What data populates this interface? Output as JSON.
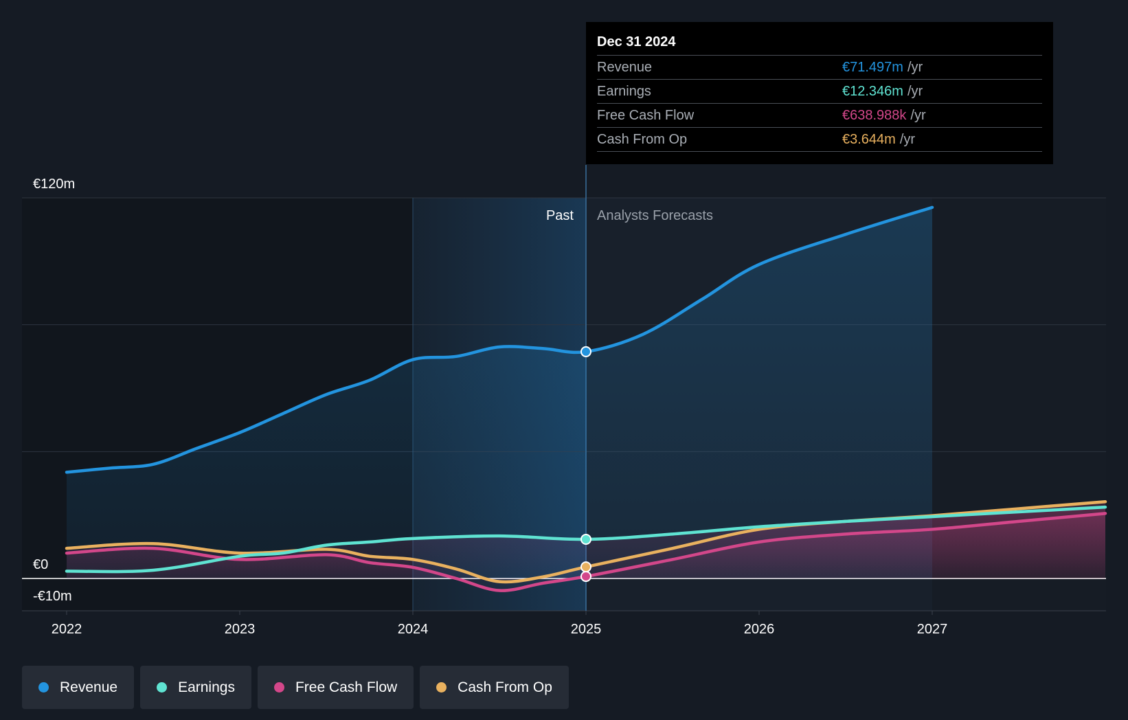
{
  "chart_data": {
    "type": "line",
    "title": "",
    "currency": "€",
    "ylim": [
      -10,
      120
    ],
    "y_ticks": [
      {
        "value": 120,
        "label": "€120m"
      },
      {
        "value": 0,
        "label": "€0"
      },
      {
        "value": -10,
        "label": "-€10m"
      }
    ],
    "x_ticks": [
      {
        "value": 2022,
        "label": "2022"
      },
      {
        "value": 2023,
        "label": "2023"
      },
      {
        "value": 2024,
        "label": "2024"
      },
      {
        "value": 2025,
        "label": "2025"
      },
      {
        "value": 2026,
        "label": "2026"
      },
      {
        "value": 2027,
        "label": "2027"
      }
    ],
    "xlim": [
      2021.75,
      2028.0
    ],
    "past_label": "Past",
    "forecast_label": "Analysts Forecasts",
    "past_end": 2025.0,
    "highlight_start": 2024.0,
    "forecast_end": 2027.0,
    "series": [
      {
        "name": "Revenue",
        "color": "#2394df",
        "points": [
          [
            2022.0,
            33.5
          ],
          [
            2022.25,
            34.8
          ],
          [
            2022.5,
            36.0
          ],
          [
            2022.75,
            41.0
          ],
          [
            2023.0,
            46.0
          ],
          [
            2023.25,
            52.0
          ],
          [
            2023.5,
            58.0
          ],
          [
            2023.75,
            62.5
          ],
          [
            2024.0,
            69.0
          ],
          [
            2024.25,
            70.0
          ],
          [
            2024.5,
            73.0
          ],
          [
            2024.75,
            72.5
          ],
          [
            2025.0,
            71.497
          ],
          [
            2025.33,
            77.0
          ],
          [
            2025.67,
            88.0
          ],
          [
            2026.0,
            99.0
          ],
          [
            2026.5,
            108.5
          ],
          [
            2027.0,
            117.0
          ]
        ]
      },
      {
        "name": "Earnings",
        "color": "#5fe3d2",
        "points": [
          [
            2022.0,
            2.3
          ],
          [
            2022.5,
            2.6
          ],
          [
            2023.0,
            7.0
          ],
          [
            2023.25,
            8.0
          ],
          [
            2023.5,
            10.5
          ],
          [
            2023.75,
            11.5
          ],
          [
            2024.0,
            12.6
          ],
          [
            2024.5,
            13.4
          ],
          [
            2025.0,
            12.346
          ],
          [
            2025.5,
            14.0
          ],
          [
            2026.0,
            16.3
          ],
          [
            2026.5,
            18.0
          ],
          [
            2027.0,
            19.5
          ],
          [
            2027.5,
            21.0
          ],
          [
            2028.0,
            22.5
          ]
        ]
      },
      {
        "name": "Free Cash Flow",
        "color": "#d3478a",
        "points": [
          [
            2022.0,
            8.0
          ],
          [
            2022.5,
            9.5
          ],
          [
            2023.0,
            6.0
          ],
          [
            2023.5,
            7.5
          ],
          [
            2023.75,
            5.0
          ],
          [
            2024.0,
            3.5
          ],
          [
            2024.25,
            0.0
          ],
          [
            2024.5,
            -3.8
          ],
          [
            2024.75,
            -1.5
          ],
          [
            2025.0,
            0.639
          ],
          [
            2025.5,
            6.0
          ],
          [
            2026.0,
            11.5
          ],
          [
            2026.5,
            14.0
          ],
          [
            2027.0,
            15.5
          ],
          [
            2027.5,
            18.0
          ],
          [
            2028.0,
            20.5
          ]
        ]
      },
      {
        "name": "Cash From Op",
        "color": "#e9b15f",
        "points": [
          [
            2022.0,
            9.5
          ],
          [
            2022.5,
            11.0
          ],
          [
            2023.0,
            8.0
          ],
          [
            2023.5,
            9.2
          ],
          [
            2023.75,
            7.0
          ],
          [
            2024.0,
            6.0
          ],
          [
            2024.25,
            3.0
          ],
          [
            2024.5,
            -1.0
          ],
          [
            2024.75,
            0.5
          ],
          [
            2025.0,
            3.644
          ],
          [
            2025.5,
            9.5
          ],
          [
            2026.0,
            15.5
          ],
          [
            2026.5,
            18.0
          ],
          [
            2027.0,
            19.8
          ],
          [
            2027.5,
            22.0
          ],
          [
            2028.0,
            24.2
          ]
        ]
      }
    ],
    "highlight_date": 2025.0,
    "tooltip": {
      "date": "Dec 31 2024",
      "unit": "/yr",
      "rows": [
        {
          "name": "Revenue",
          "value": "€71.497m",
          "color": "#2394df"
        },
        {
          "name": "Earnings",
          "value": "€12.346m",
          "color": "#5fe3d2"
        },
        {
          "name": "Free Cash Flow",
          "value": "€638.988k",
          "color": "#d3478a"
        },
        {
          "name": "Cash From Op",
          "value": "€3.644m",
          "color": "#e9b15f"
        }
      ]
    }
  },
  "legend": [
    {
      "label": "Revenue",
      "color": "#2394df"
    },
    {
      "label": "Earnings",
      "color": "#5fe3d2"
    },
    {
      "label": "Free Cash Flow",
      "color": "#d3478a"
    },
    {
      "label": "Cash From Op",
      "color": "#e9b15f"
    }
  ]
}
